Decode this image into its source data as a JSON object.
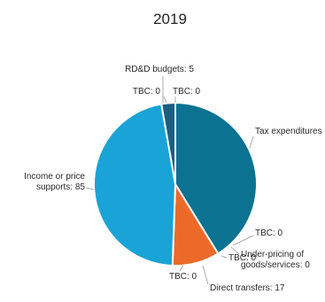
{
  "chart_data": {
    "type": "pie",
    "title": "2019",
    "slices": [
      {
        "name": "Tax expenditures",
        "value": 75,
        "label": "Tax expenditures",
        "color": "#0c7291"
      },
      {
        "name": "TBC (Tax expenditures)",
        "value": 0,
        "label": "TBC: 0",
        "color": "#0c7291"
      },
      {
        "name": "Under-pricing of goods/services",
        "value": 0,
        "label_lines": [
          "Under-pricing of",
          "goods/services: 0"
        ],
        "color": "#c9d94a"
      },
      {
        "name": "TBC (Direct transfers)",
        "value": 0,
        "label": "TBC: 0",
        "color": "#eb6a2a"
      },
      {
        "name": "Direct transfers",
        "value": 17,
        "label": "Direct transfers: 17",
        "color": "#eb6a2a"
      },
      {
        "name": "TBC (Income or price supports)",
        "value": 0,
        "label": "TBC: 0",
        "color": "#1aa3d6"
      },
      {
        "name": "Income or price supports",
        "value": 85,
        "label_lines": [
          "Income or price",
          "supports: 85"
        ],
        "color": "#1aa3d6"
      },
      {
        "name": "TBC (RD&D budgets)",
        "value": 0,
        "label": "TBC: 0",
        "color": "#1b5e80"
      },
      {
        "name": "RD&D budgets",
        "value": 5,
        "label": "RD&D budgets: 5",
        "color": "#1b5e80"
      },
      {
        "name": "TBC (top)",
        "value": 0,
        "label": "TBC: 0",
        "color": "#1b5e80"
      }
    ]
  }
}
